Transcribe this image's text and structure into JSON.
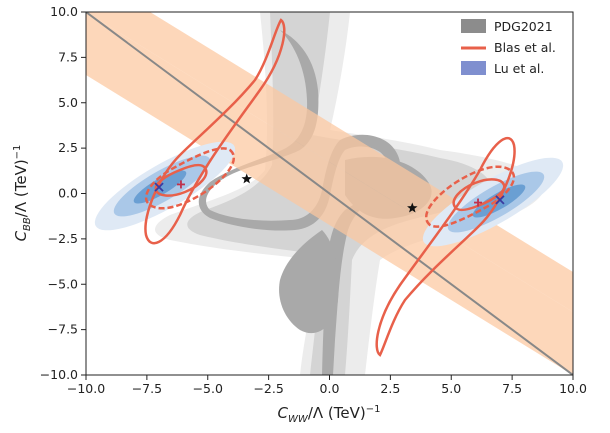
{
  "chart_data": {
    "type": "contour",
    "title": "",
    "xlabel": {
      "base": "C",
      "sub": "WW",
      "mid": "/Λ (TeV)",
      "sup": "−1"
    },
    "ylabel": {
      "base": "C",
      "sub": "BB",
      "mid": "/Λ (TeV)",
      "sup": "−1"
    },
    "xlim": [
      -10,
      10
    ],
    "ylim": [
      -10,
      10
    ],
    "xticks": [
      -10,
      -7.5,
      -5,
      -2.5,
      0,
      2.5,
      5,
      7.5,
      10
    ],
    "yticks": [
      -10,
      -7.5,
      -5,
      -2.5,
      0,
      2.5,
      5,
      7.5,
      10
    ],
    "xtick_labels": [
      "−10.0",
      "−7.5",
      "−5.0",
      "−2.5",
      "0.0",
      "2.5",
      "5.0",
      "7.5",
      "10.0"
    ],
    "ytick_labels": [
      "−10.0",
      "−7.5",
      "−5.0",
      "−2.5",
      "0.0",
      "2.5",
      "5.0",
      "7.5",
      "10.0"
    ],
    "legend": {
      "position": "top-right",
      "entries": [
        {
          "label": "PDG2021",
          "color": "#8c8c8c",
          "style": "patch"
        },
        {
          "label": "Blas et al.",
          "color": "#e8604a",
          "style": "line"
        },
        {
          "label": "Lu et al.",
          "color": "#7f8fcf",
          "style": "patch"
        }
      ]
    },
    "series": [
      {
        "name": "PDG2021",
        "kind": "filled-contour",
        "colors": [
          "#eeeeee",
          "#d4d4d4",
          "#a8a8a8"
        ],
        "shape": "hyperbolic bands around C_BB ≈ -C_WW, lobes open toward upper-left and lower-right"
      },
      {
        "name": "Blas et al.",
        "kind": "contour-lines",
        "color": "#e8604a",
        "regions": [
          {
            "center": [
              -6.2,
              0.5
            ]
          },
          {
            "center": [
              6.2,
              -0.5
            ]
          }
        ]
      },
      {
        "name": "Lu et al.",
        "kind": "filled-contour",
        "colors": [
          "#dde8f5",
          "#a9c6e6",
          "#6a9fd2"
        ],
        "regions": [
          {
            "center": [
              -7.0,
              0.4
            ]
          },
          {
            "center": [
              7.0,
              -0.4
            ]
          }
        ]
      }
    ],
    "band": {
      "color": "#fcd3b4",
      "line": "C_BB = -C_WW",
      "half_width": 2.2
    },
    "diagonal_line": {
      "points": [
        [
          -10,
          10
        ],
        [
          10,
          -10
        ]
      ],
      "color": "#888888"
    },
    "markers": [
      {
        "symbol": "star",
        "x": -3.4,
        "y": 0.8,
        "color": "#111111"
      },
      {
        "symbol": "star",
        "x": 3.4,
        "y": -0.8,
        "color": "#111111"
      },
      {
        "symbol": "x",
        "x": -7.0,
        "y": 0.35,
        "color": "#3b3ba0"
      },
      {
        "symbol": "x",
        "x": 7.0,
        "y": -0.35,
        "color": "#3b3ba0"
      },
      {
        "symbol": "plus",
        "x": -6.1,
        "y": 0.5,
        "color": "#c0304a"
      },
      {
        "symbol": "plus",
        "x": 6.1,
        "y": -0.5,
        "color": "#c0304a"
      }
    ]
  }
}
